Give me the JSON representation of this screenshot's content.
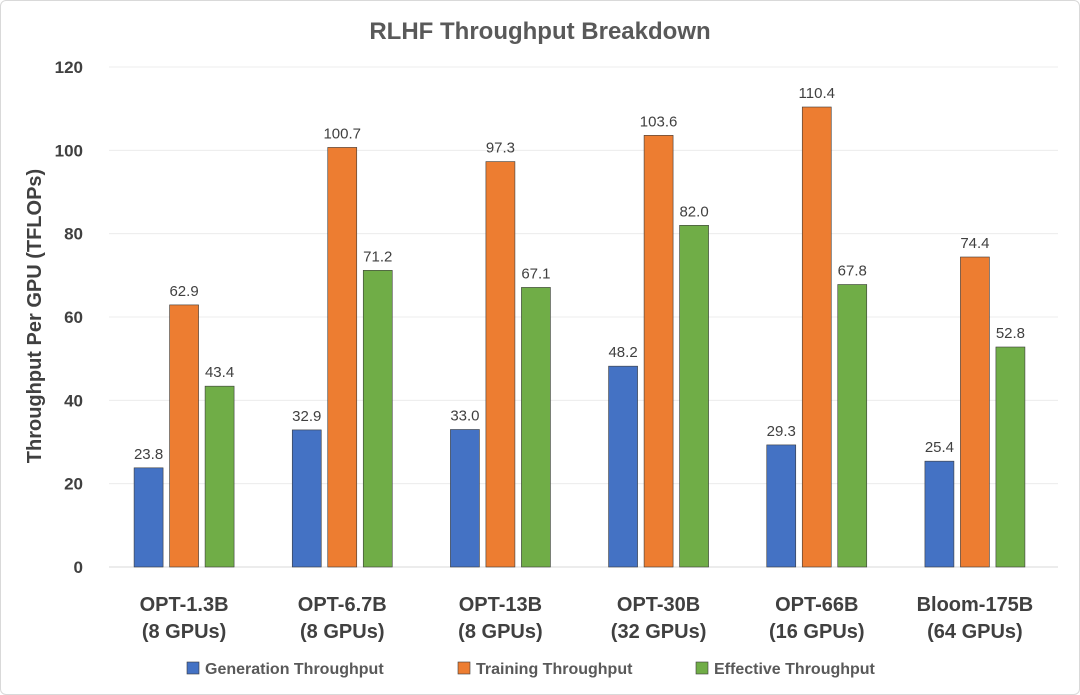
{
  "chart_data": {
    "type": "bar",
    "title": "RLHF Throughput Breakdown",
    "ylabel": "Throughput Per GPU (TFLOPs)",
    "xlabel": "",
    "ylim": [
      0,
      120
    ],
    "yticks": [
      0,
      20,
      40,
      60,
      80,
      100,
      120
    ],
    "grid": true,
    "legend_position": "bottom",
    "categories": [
      [
        "OPT-1.3B",
        "(8 GPUs)"
      ],
      [
        "OPT-6.7B",
        "(8 GPUs)"
      ],
      [
        "OPT-13B",
        "(8 GPUs)"
      ],
      [
        "OPT-30B",
        "(32 GPUs)"
      ],
      [
        "OPT-66B",
        "(16 GPUs)"
      ],
      [
        "Bloom-175B",
        "(64 GPUs)"
      ]
    ],
    "series": [
      {
        "name": "Generation Throughput",
        "color": "#4472c4",
        "values": [
          23.8,
          32.9,
          33.0,
          48.2,
          29.3,
          25.4
        ],
        "labels": [
          "23.8",
          "32.9",
          "33.0",
          "48.2",
          "29.3",
          "25.4"
        ]
      },
      {
        "name": "Training Throughput",
        "color": "#ed7d31",
        "values": [
          62.9,
          100.7,
          97.3,
          103.6,
          110.4,
          74.4
        ],
        "labels": [
          "62.9",
          "100.7",
          "97.3",
          "103.6",
          "110.4",
          "74.4"
        ]
      },
      {
        "name": "Effective Throughput",
        "color": "#70ad47",
        "values": [
          43.4,
          71.2,
          67.1,
          82.0,
          67.8,
          52.8
        ],
        "labels": [
          "43.4",
          "71.2",
          "67.1",
          "82.0",
          "67.8",
          "52.8"
        ]
      }
    ]
  }
}
